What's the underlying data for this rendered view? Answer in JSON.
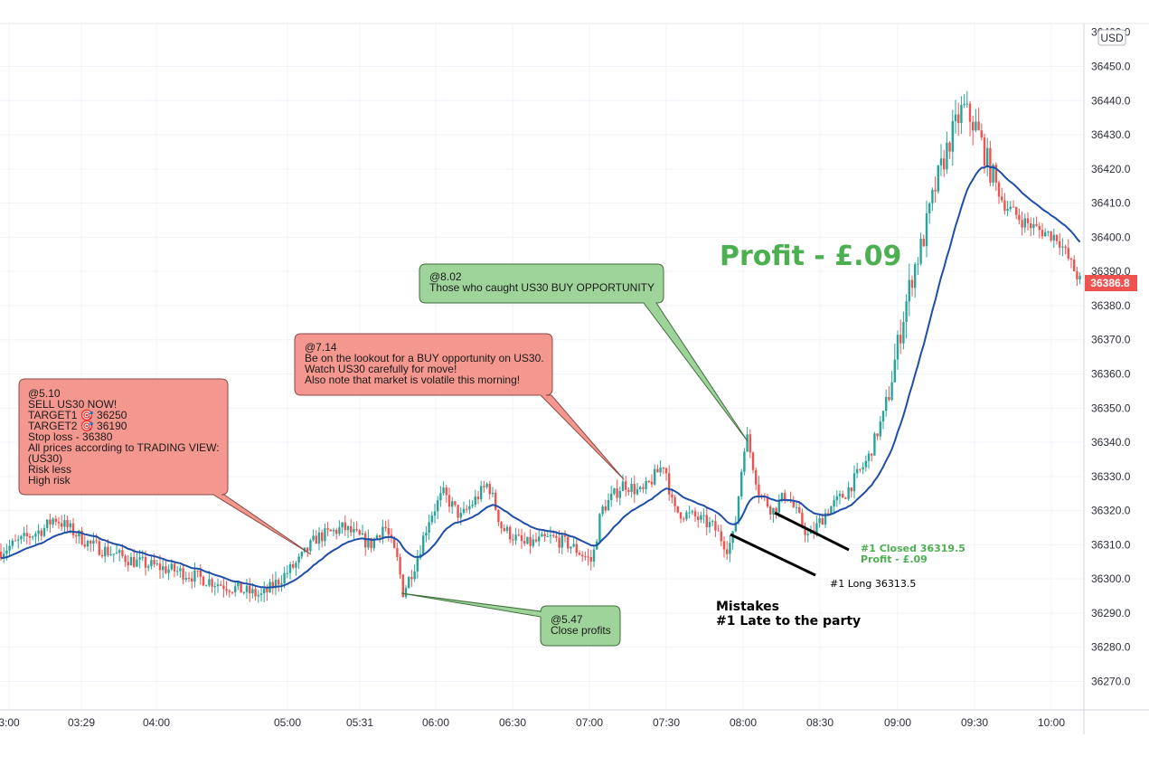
{
  "chart_data": {
    "type": "candlestick",
    "currency_label": "USD",
    "y_axis": {
      "ticks": [
        36270,
        36280,
        36290,
        36300,
        36310,
        36320,
        36330,
        36340,
        36350,
        36360,
        36370,
        36380,
        36390,
        36400,
        36410,
        36420,
        36430,
        36440,
        36450
      ],
      "tick_labels": [
        "36270.0",
        "36280.0",
        "36290.0",
        "36300.0",
        "36310.0",
        "36320.0",
        "36330.0",
        "36340.0",
        "36350.0",
        "36360.0",
        "36370.0",
        "36380.0",
        "36390.0",
        "36400.0",
        "36410.0",
        "36420.0",
        "36430.0",
        "36440.0",
        "36450.0"
      ],
      "top_partial_label": "36460.0",
      "range": [
        36261,
        36464
      ]
    },
    "x_axis": {
      "labels": [
        "3:00",
        "03:29",
        "04:00",
        "05:00",
        "05:31",
        "06:00",
        "06:30",
        "07:00",
        "07:30",
        "08:00",
        "08:30",
        "09:00",
        "09:30",
        "10:00"
      ]
    },
    "last_price": "36386.8",
    "colors": {
      "up": "#26a69a",
      "down": "#ef5350",
      "moving_average": "#1e4ea8",
      "last_price_tag": "#ef5350",
      "profit_text": "#4caf50",
      "sell_callout": "#f4978e",
      "buy_callout": "#9ed49a"
    },
    "price_path": [
      [
        0,
        36308
      ],
      [
        50,
        36315
      ],
      [
        60,
        36318
      ],
      [
        100,
        36310
      ],
      [
        150,
        36305
      ],
      [
        200,
        36302
      ],
      [
        250,
        36298
      ],
      [
        290,
        36295
      ],
      [
        330,
        36305
      ],
      [
        350,
        36312
      ],
      [
        380,
        36315
      ],
      [
        410,
        36310
      ],
      [
        425,
        36316
      ],
      [
        440,
        36305
      ],
      [
        446,
        36296
      ],
      [
        460,
        36305
      ],
      [
        475,
        36318
      ],
      [
        490,
        36325
      ],
      [
        510,
        36318
      ],
      [
        540,
        36328
      ],
      [
        555,
        36315
      ],
      [
        580,
        36310
      ],
      [
        610,
        36312
      ],
      [
        630,
        36310
      ],
      [
        655,
        36305
      ],
      [
        665,
        36320
      ],
      [
        690,
        36328
      ],
      [
        710,
        36325
      ],
      [
        735,
        36334
      ],
      [
        745,
        36320
      ],
      [
        770,
        36318
      ],
      [
        790,
        36315
      ],
      [
        805,
        36309
      ],
      [
        812,
        36313
      ],
      [
        825,
        36343
      ],
      [
        840,
        36325
      ],
      [
        855,
        36320
      ],
      [
        870,
        36325
      ],
      [
        895,
        36312
      ],
      [
        915,
        36320
      ],
      [
        935,
        36325
      ],
      [
        960,
        36335
      ],
      [
        980,
        36350
      ],
      [
        1000,
        36378
      ],
      [
        1010,
        36390
      ],
      [
        1020,
        36398
      ],
      [
        1035,
        36415
      ],
      [
        1050,
        36428
      ],
      [
        1065,
        36438
      ],
      [
        1080,
        36432
      ],
      [
        1095,
        36420
      ],
      [
        1110,
        36410
      ],
      [
        1130,
        36405
      ],
      [
        1150,
        36402
      ],
      [
        1170,
        36400
      ],
      [
        1185,
        36392
      ],
      [
        1195,
        36387
      ]
    ],
    "callouts": [
      {
        "name": "sell-now",
        "lines": [
          "@5.10",
          "SELL US30 NOW!",
          "TARGET1 🎯 36250",
          "TARGET2 🎯 36190",
          "Stop loss  - 36380",
          "All prices according to TRADING VIEW:",
          "(US30)",
          "Risk less",
          "High risk"
        ]
      },
      {
        "name": "buy-lookout",
        "lines": [
          "@7.14",
          "Be on the lookout for a BUY opportunity on US30.",
          "Watch US30 carefully for move!",
          "Also note that market is volatile this morning!"
        ]
      },
      {
        "name": "buy-caught",
        "lines": [
          "@8.02",
          "Those who caught US30 BUY OPPORTUNITY"
        ]
      },
      {
        "name": "close-profits",
        "lines": [
          "@5.47",
          "Close profits"
        ]
      }
    ],
    "annotations": {
      "profit_title": "Profit - £.09",
      "long_entry": "#1 Long 36313.5",
      "closed_line1": "#1 Closed 36319.5",
      "closed_line2": "Profit - £.09",
      "mistakes_line1": "Mistakes",
      "mistakes_line2": "#1 Late to the party"
    }
  }
}
